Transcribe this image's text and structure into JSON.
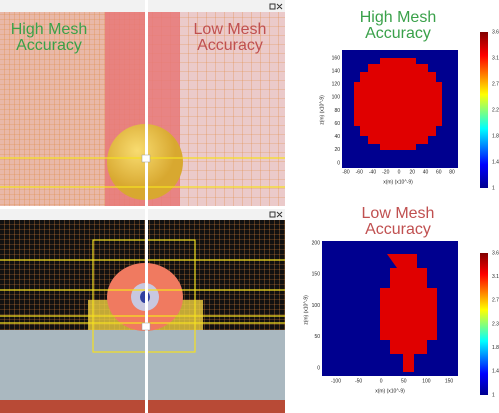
{
  "viewer": {
    "left_label": "High Mesh Accuracy",
    "right_label": "Low Mesh Accuracy"
  },
  "plots": [
    {
      "title": "High Mesh Accuracy",
      "x_label": "x(m) (x10^-9)",
      "y_label": "z(m) (x10^-9)",
      "xticks": [
        -80,
        -60,
        -40,
        -20,
        0,
        20,
        40,
        60,
        80
      ],
      "yticks": [
        0,
        20,
        40,
        60,
        80,
        100,
        120,
        140,
        160
      ],
      "colorbar": [
        "3.6",
        "3.1",
        "2.7",
        "2.2",
        "1.8",
        "1.4",
        "1"
      ]
    },
    {
      "title": "Low Mesh Accuracy",
      "x_label": "x(m) (x10^-9)",
      "y_label": "z(m) (x10^-9)",
      "xticks": [
        -100,
        -50,
        0,
        50,
        100,
        150
      ],
      "yticks": [
        0,
        50,
        100,
        150,
        200
      ],
      "colorbar": [
        "3.6",
        "3.1",
        "2.7",
        "2.3",
        "1.8",
        "1.4",
        "1"
      ]
    }
  ]
}
